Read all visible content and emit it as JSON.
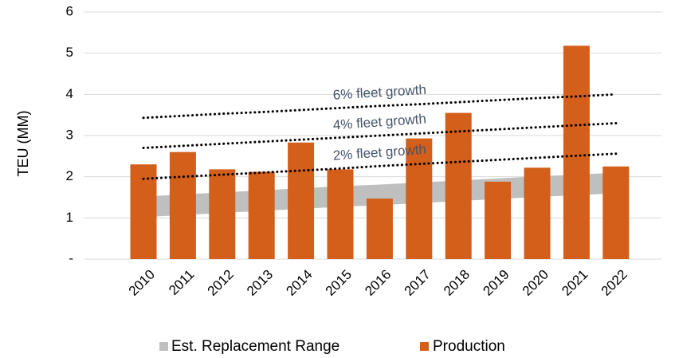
{
  "chart_data": {
    "type": "bar",
    "categories": [
      "2010",
      "2011",
      "2012",
      "2013",
      "2014",
      "2015",
      "2016",
      "2017",
      "2018",
      "2019",
      "2020",
      "2021",
      "2022"
    ],
    "y_label": "TEU (MM)",
    "ylim": [
      0,
      6
    ],
    "yticks": [
      {
        "value": 0,
        "label": "-"
      },
      1,
      2,
      3,
      4,
      5,
      6
    ],
    "grid": true,
    "legend": "bottom",
    "series": [
      {
        "name": "Est. Replacement Range",
        "kind": "range",
        "color": "#bfbfbf",
        "low": [
          1.02,
          1.07,
          1.12,
          1.17,
          1.22,
          1.27,
          1.31,
          1.36,
          1.41,
          1.46,
          1.51,
          1.55,
          1.6
        ],
        "high": [
          1.52,
          1.57,
          1.62,
          1.67,
          1.72,
          1.77,
          1.81,
          1.86,
          1.91,
          1.96,
          2.01,
          2.05,
          2.1
        ]
      },
      {
        "name": "Production",
        "kind": "bar",
        "color": "#d35f1a",
        "values": [
          2.3,
          2.6,
          2.18,
          2.12,
          2.83,
          2.18,
          1.47,
          2.93,
          3.55,
          1.88,
          2.22,
          5.18,
          2.25
        ]
      },
      {
        "name": "6% fleet growth",
        "kind": "dotted-line",
        "color": "#000000",
        "values": [
          3.43,
          3.48,
          3.53,
          3.57,
          3.62,
          3.67,
          3.72,
          3.76,
          3.81,
          3.86,
          3.91,
          3.95,
          4.0
        ]
      },
      {
        "name": "4% fleet growth",
        "kind": "dotted-line",
        "color": "#000000",
        "values": [
          2.7,
          2.75,
          2.8,
          2.85,
          2.9,
          2.95,
          3.0,
          3.05,
          3.1,
          3.15,
          3.2,
          3.25,
          3.3
        ]
      },
      {
        "name": "2% fleet growth",
        "kind": "dotted-line",
        "color": "#000000",
        "values": [
          1.95,
          2.0,
          2.05,
          2.1,
          2.15,
          2.2,
          2.26,
          2.31,
          2.36,
          2.41,
          2.46,
          2.51,
          2.56
        ]
      }
    ]
  }
}
